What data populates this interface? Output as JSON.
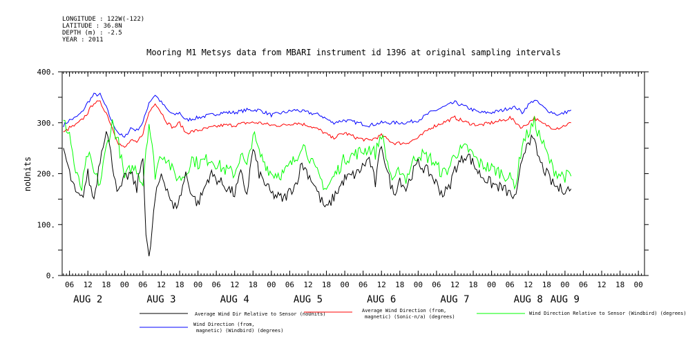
{
  "header": {
    "lines": [
      "LONGITUDE : 122W(-122)",
      "LATITUDE : 36.8N",
      "DEPTH (m) : -2.5",
      "YEAR : 2011"
    ]
  },
  "chart_data": {
    "type": "line",
    "title": "Mooring M1 Metsys data from MBARI instrument id 1396 at original sampling intervals",
    "ylabel": "noUnits",
    "ylim": [
      0,
      400
    ],
    "yticks": [
      0,
      100,
      200,
      300,
      400
    ],
    "ytick_labels": [
      "0.",
      "100.",
      "200.",
      "300.",
      "400."
    ],
    "x_unit": "hours since 2011-08-01 00:00",
    "xlim": [
      3.6,
      194
    ],
    "hour_ticks": [
      {
        "h": 6,
        "label": "06"
      },
      {
        "h": 12,
        "label": "12"
      },
      {
        "h": 18,
        "label": "18"
      },
      {
        "h": 24,
        "label": "00"
      },
      {
        "h": 30,
        "label": "06"
      },
      {
        "h": 36,
        "label": "12"
      },
      {
        "h": 42,
        "label": "18"
      },
      {
        "h": 48,
        "label": "00"
      },
      {
        "h": 54,
        "label": "06"
      },
      {
        "h": 60,
        "label": "12"
      },
      {
        "h": 66,
        "label": "18"
      },
      {
        "h": 72,
        "label": "00"
      },
      {
        "h": 78,
        "label": "06"
      },
      {
        "h": 84,
        "label": "12"
      },
      {
        "h": 90,
        "label": "18"
      },
      {
        "h": 96,
        "label": "00"
      },
      {
        "h": 102,
        "label": "06"
      },
      {
        "h": 108,
        "label": "12"
      },
      {
        "h": 114,
        "label": "18"
      },
      {
        "h": 120,
        "label": "00"
      },
      {
        "h": 126,
        "label": "06"
      },
      {
        "h": 132,
        "label": "12"
      },
      {
        "h": 138,
        "label": "18"
      },
      {
        "h": 144,
        "label": "00"
      },
      {
        "h": 150,
        "label": "06"
      },
      {
        "h": 156,
        "label": "12"
      },
      {
        "h": 162,
        "label": "18"
      },
      {
        "h": 168,
        "label": "00"
      },
      {
        "h": 174,
        "label": "06"
      },
      {
        "h": 180,
        "label": "12"
      },
      {
        "h": 186,
        "label": "18"
      },
      {
        "h": 192,
        "label": "00"
      }
    ],
    "date_labels": [
      {
        "h": 12,
        "label": "AUG  2"
      },
      {
        "h": 36,
        "label": "AUG  3"
      },
      {
        "h": 60,
        "label": "AUG  4"
      },
      {
        "h": 84,
        "label": "AUG  5"
      },
      {
        "h": 108,
        "label": "AUG  6"
      },
      {
        "h": 132,
        "label": "AUG  7"
      },
      {
        "h": 156,
        "label": "AUG  8"
      },
      {
        "h": 168,
        "label": "AUG  9"
      }
    ],
    "grid": false,
    "legend_position": "bottom",
    "series": [
      {
        "name": "Average Wind Dir Relative to Sensor (noUnits)",
        "color": "#000000",
        "x": [
          4,
          6,
          8,
          10,
          12,
          13,
          14,
          16,
          18,
          20,
          22,
          24,
          26,
          28,
          30,
          31,
          32,
          34,
          36,
          38,
          40,
          42,
          44,
          46,
          48,
          52,
          56,
          60,
          62,
          64,
          66,
          68,
          72,
          76,
          80,
          82,
          84,
          86,
          88,
          90,
          92,
          96,
          100,
          104,
          106,
          108,
          110,
          112,
          114,
          116,
          118,
          120,
          124,
          128,
          130,
          132,
          136,
          140,
          144,
          148,
          150,
          152,
          154,
          156,
          158,
          160,
          162,
          164,
          166,
          168,
          170
        ],
        "values": [
          250,
          200,
          160,
          150,
          200,
          170,
          150,
          230,
          290,
          220,
          160,
          190,
          200,
          170,
          240,
          80,
          30,
          150,
          200,
          170,
          130,
          150,
          200,
          160,
          140,
          200,
          180,
          160,
          200,
          160,
          250,
          200,
          160,
          150,
          180,
          220,
          200,
          180,
          150,
          130,
          150,
          190,
          200,
          230,
          180,
          260,
          200,
          160,
          190,
          170,
          200,
          220,
          200,
          160,
          170,
          210,
          240,
          200,
          180,
          170,
          160,
          150,
          230,
          270,
          260,
          220,
          200,
          180,
          170,
          170,
          170
        ]
      },
      {
        "name": "Average Wind Direction (from, magnetic) (Sonic-n/a) (degrees)",
        "color": "#ff0000",
        "x": [
          4,
          6,
          8,
          10,
          12,
          14,
          16,
          18,
          20,
          22,
          24,
          26,
          28,
          30,
          32,
          34,
          36,
          38,
          40,
          42,
          44,
          48,
          52,
          56,
          60,
          64,
          68,
          72,
          76,
          80,
          84,
          88,
          92,
          96,
          100,
          104,
          108,
          112,
          116,
          120,
          124,
          128,
          132,
          136,
          140,
          144,
          148,
          150,
          152,
          154,
          156,
          158,
          160,
          162,
          164,
          166,
          168,
          170
        ],
        "values": [
          280,
          290,
          295,
          305,
          320,
          340,
          340,
          320,
          290,
          260,
          250,
          265,
          260,
          280,
          320,
          340,
          320,
          300,
          290,
          300,
          280,
          285,
          290,
          295,
          295,
          300,
          300,
          295,
          295,
          300,
          295,
          285,
          270,
          280,
          270,
          265,
          275,
          260,
          260,
          270,
          290,
          300,
          310,
          300,
          295,
          300,
          305,
          310,
          300,
          290,
          300,
          310,
          300,
          295,
          290,
          290,
          295,
          300
        ]
      },
      {
        "name": "Wind Direction Relative to Sensor (Windbird) (degrees)",
        "color": "#00ff00",
        "x": [
          4,
          6,
          8,
          10,
          12,
          14,
          16,
          18,
          20,
          22,
          24,
          26,
          28,
          30,
          31,
          32,
          34,
          36,
          38,
          40,
          42,
          44,
          46,
          48,
          52,
          56,
          60,
          62,
          64,
          66,
          68,
          72,
          76,
          80,
          82,
          84,
          86,
          88,
          90,
          92,
          96,
          100,
          104,
          106,
          108,
          110,
          112,
          114,
          116,
          118,
          120,
          124,
          128,
          130,
          132,
          136,
          140,
          144,
          148,
          150,
          152,
          154,
          156,
          158,
          160,
          162,
          164,
          166,
          168,
          170
        ],
        "values": [
          300,
          280,
          200,
          170,
          240,
          200,
          180,
          250,
          300,
          260,
          190,
          210,
          210,
          180,
          250,
          300,
          200,
          240,
          230,
          200,
          190,
          200,
          230,
          220,
          230,
          210,
          200,
          240,
          210,
          280,
          240,
          200,
          200,
          230,
          260,
          240,
          210,
          190,
          170,
          190,
          230,
          240,
          250,
          240,
          280,
          220,
          180,
          210,
          190,
          220,
          240,
          230,
          200,
          210,
          240,
          250,
          220,
          210,
          200,
          190,
          180,
          260,
          280,
          300,
          270,
          240,
          210,
          200,
          195,
          195
        ]
      },
      {
        "name": "Wind Direction (from, magnetic) (Windbird) (degrees)",
        "color": "#0000ff",
        "x": [
          4,
          6,
          8,
          10,
          12,
          14,
          16,
          18,
          20,
          22,
          24,
          26,
          28,
          30,
          32,
          34,
          36,
          38,
          40,
          42,
          44,
          48,
          52,
          56,
          60,
          64,
          68,
          72,
          76,
          80,
          84,
          88,
          92,
          96,
          100,
          104,
          108,
          112,
          116,
          120,
          124,
          128,
          132,
          136,
          140,
          144,
          148,
          150,
          152,
          154,
          156,
          158,
          160,
          162,
          164,
          166,
          168,
          170
        ],
        "values": [
          295,
          305,
          310,
          320,
          340,
          355,
          355,
          330,
          300,
          280,
          270,
          290,
          285,
          300,
          340,
          355,
          340,
          325,
          315,
          320,
          305,
          310,
          315,
          320,
          320,
          325,
          325,
          315,
          320,
          325,
          320,
          315,
          300,
          305,
          300,
          295,
          300,
          300,
          300,
          305,
          320,
          330,
          340,
          330,
          320,
          320,
          325,
          330,
          330,
          320,
          335,
          345,
          335,
          325,
          320,
          315,
          320,
          325
        ]
      }
    ]
  }
}
